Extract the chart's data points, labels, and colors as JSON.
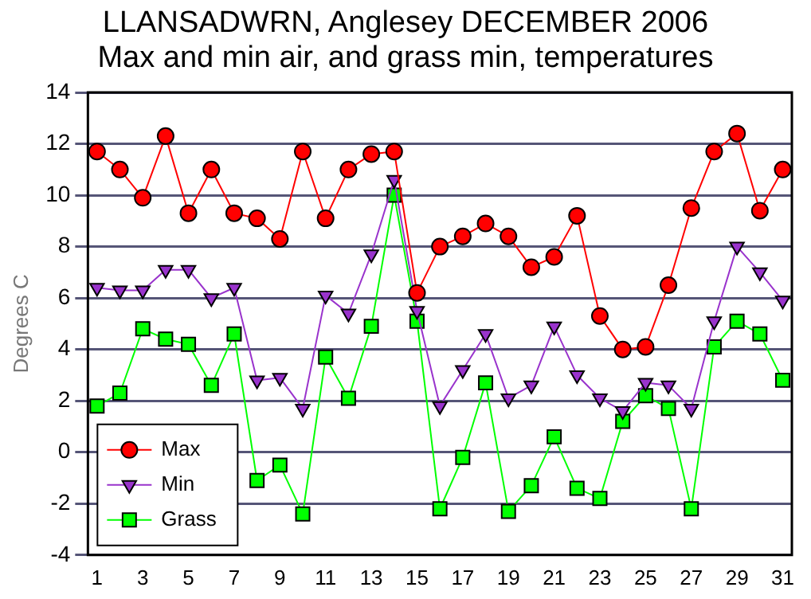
{
  "chart_data": {
    "type": "line",
    "title": "LLANSADWRN, Anglesey DECEMBER 2006",
    "subtitle": "Max and min air, and grass min, temperatures",
    "ylabel": "Degrees C",
    "x": [
      1,
      2,
      3,
      4,
      5,
      6,
      7,
      8,
      9,
      10,
      11,
      12,
      13,
      14,
      15,
      16,
      17,
      18,
      19,
      20,
      21,
      22,
      23,
      24,
      25,
      26,
      27,
      28,
      29,
      30,
      31
    ],
    "xlim": [
      0.6,
      31.4
    ],
    "xticks": [
      1,
      3,
      5,
      7,
      9,
      11,
      13,
      15,
      17,
      19,
      21,
      23,
      25,
      27,
      29,
      31
    ],
    "series": [
      {
        "name": "Max",
        "color": "#ff0000",
        "marker": "circle",
        "values": [
          11.7,
          11.0,
          9.9,
          12.3,
          9.3,
          11.0,
          9.3,
          9.1,
          8.3,
          11.7,
          9.1,
          11.0,
          11.6,
          11.7,
          6.2,
          8.0,
          8.4,
          8.9,
          8.4,
          7.2,
          7.6,
          9.2,
          5.3,
          4.0,
          4.1,
          6.5,
          9.5,
          11.7,
          12.4,
          9.4,
          11.0
        ]
      },
      {
        "name": "Min",
        "color": "#9933cc",
        "marker": "triangle",
        "values": [
          6.4,
          6.3,
          6.3,
          7.1,
          7.1,
          6.0,
          6.4,
          2.8,
          2.9,
          1.7,
          6.1,
          5.4,
          7.7,
          10.6,
          5.5,
          1.8,
          3.2,
          4.6,
          2.1,
          2.6,
          4.9,
          3.0,
          2.1,
          1.6,
          2.7,
          2.6,
          1.7,
          5.1,
          8.0,
          7.0,
          5.9
        ]
      },
      {
        "name": "Grass",
        "color": "#00ff00",
        "marker": "square",
        "values": [
          1.8,
          2.3,
          4.8,
          4.4,
          4.2,
          2.6,
          4.6,
          -1.1,
          -0.5,
          -2.4,
          3.7,
          2.1,
          4.9,
          10.0,
          5.1,
          -2.2,
          -0.2,
          2.7,
          -2.3,
          -1.3,
          0.6,
          -1.4,
          -1.8,
          1.2,
          2.2,
          1.7,
          -2.2,
          4.1,
          5.1,
          4.6,
          2.8
        ]
      }
    ],
    "ylim": [
      -4,
      14
    ],
    "yticks": [
      -4,
      -2,
      0,
      2,
      4,
      6,
      8,
      10,
      12,
      14
    ],
    "grid": "y",
    "legend": "bottom left"
  }
}
